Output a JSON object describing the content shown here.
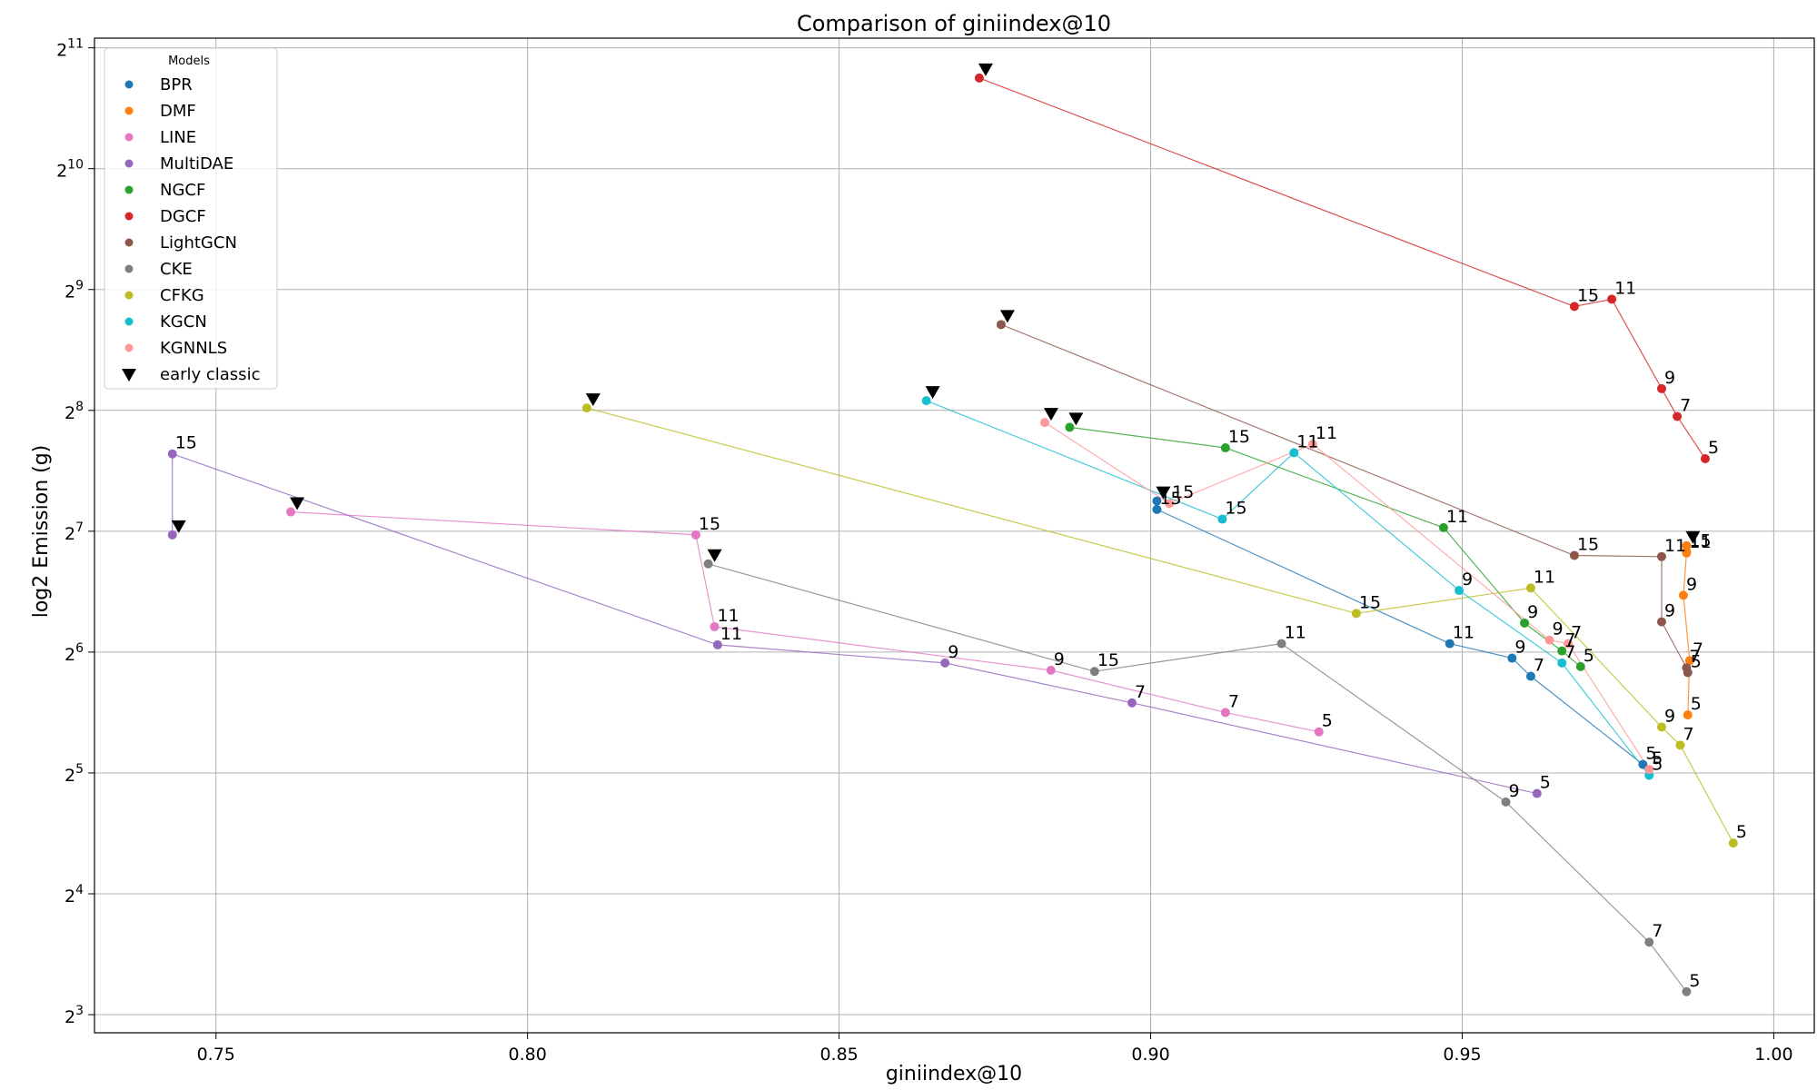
{
  "chart_data": {
    "type": "scatter",
    "title": "Comparison of giniindex@10",
    "xlabel": "giniindex@10",
    "ylabel": "log2 Emission (g)",
    "xlim": [
      0.7305,
      1.0065
    ],
    "ylim": [
      2.85,
      11.08
    ],
    "xticks": [
      0.75,
      0.8,
      0.85,
      0.9,
      0.95,
      1.0
    ],
    "xtick_labels": [
      "0.75",
      "0.80",
      "0.85",
      "0.90",
      "0.95",
      "1.00"
    ],
    "yticks": [
      3,
      4,
      5,
      6,
      7,
      8,
      9,
      10,
      11
    ],
    "ytick_base": "2",
    "grid": true,
    "legend": {
      "title": "Models",
      "position": "upper-left"
    },
    "early_classic_label": "early classic",
    "series": [
      {
        "name": "BPR",
        "color": "#1f77b4",
        "points": [
          {
            "x": 0.901,
            "y": 7.18,
            "label": "15"
          },
          {
            "x": 0.948,
            "y": 6.07,
            "label": "11"
          },
          {
            "x": 0.958,
            "y": 5.95,
            "label": "9"
          },
          {
            "x": 0.961,
            "y": 5.8,
            "label": "7"
          },
          {
            "x": 0.979,
            "y": 5.07,
            "label": "5"
          }
        ],
        "early": {
          "x": 0.901,
          "y": 7.25
        }
      },
      {
        "name": "DMF",
        "color": "#ff7f0e",
        "points": [
          {
            "x": 0.986,
            "y": 6.83,
            "label": "15"
          },
          {
            "x": 0.986,
            "y": 6.82,
            "label": "11"
          },
          {
            "x": 0.9855,
            "y": 6.47,
            "label": "9"
          },
          {
            "x": 0.9865,
            "y": 5.93,
            "label": "7"
          },
          {
            "x": 0.9862,
            "y": 5.48,
            "label": "5"
          }
        ],
        "early": {
          "x": 0.986,
          "y": 6.88
        }
      },
      {
        "name": "LINE",
        "color": "#e377c2",
        "points": [
          {
            "x": 0.827,
            "y": 6.97,
            "label": "15"
          },
          {
            "x": 0.83,
            "y": 6.21,
            "label": "11"
          },
          {
            "x": 0.884,
            "y": 5.85,
            "label": "9"
          },
          {
            "x": 0.912,
            "y": 5.5,
            "label": "7"
          },
          {
            "x": 0.927,
            "y": 5.34,
            "label": "5"
          }
        ],
        "early": {
          "x": 0.762,
          "y": 7.16
        }
      },
      {
        "name": "MultiDAE",
        "color": "#9467bd",
        "points": [
          {
            "x": 0.743,
            "y": 7.64,
            "label": "15"
          },
          {
            "x": 0.8305,
            "y": 6.06,
            "label": "11"
          },
          {
            "x": 0.867,
            "y": 5.91,
            "label": "9"
          },
          {
            "x": 0.897,
            "y": 5.58,
            "label": "7"
          },
          {
            "x": 0.962,
            "y": 4.83,
            "label": "5"
          }
        ],
        "early": {
          "x": 0.743,
          "y": 6.97
        }
      },
      {
        "name": "NGCF",
        "color": "#2ca02c",
        "points": [
          {
            "x": 0.912,
            "y": 7.69,
            "label": "15"
          },
          {
            "x": 0.947,
            "y": 7.03,
            "label": "11"
          },
          {
            "x": 0.96,
            "y": 6.24,
            "label": "9"
          },
          {
            "x": 0.966,
            "y": 6.01,
            "label": "7"
          },
          {
            "x": 0.969,
            "y": 5.88,
            "label": "5"
          }
        ],
        "early": {
          "x": 0.887,
          "y": 7.86
        }
      },
      {
        "name": "DGCF",
        "color": "#d62728",
        "points": [
          {
            "x": 0.968,
            "y": 8.86,
            "label": "15"
          },
          {
            "x": 0.974,
            "y": 8.92,
            "label": "11"
          },
          {
            "x": 0.982,
            "y": 8.18,
            "label": "9"
          },
          {
            "x": 0.9845,
            "y": 7.95,
            "label": "7"
          },
          {
            "x": 0.989,
            "y": 7.6,
            "label": "5"
          }
        ],
        "early": {
          "x": 0.8725,
          "y": 10.75
        }
      },
      {
        "name": "LightGCN",
        "color": "#8c564b",
        "points": [
          {
            "x": 0.968,
            "y": 6.8,
            "label": "15"
          },
          {
            "x": 0.982,
            "y": 6.79,
            "label": "11"
          },
          {
            "x": 0.982,
            "y": 6.25,
            "label": "9"
          },
          {
            "x": 0.986,
            "y": 5.87,
            "label": "7"
          },
          {
            "x": 0.9862,
            "y": 5.83,
            "label": "5"
          }
        ],
        "early": {
          "x": 0.876,
          "y": 8.71
        }
      },
      {
        "name": "CKE",
        "color": "#7f7f7f",
        "points": [
          {
            "x": 0.891,
            "y": 5.84,
            "label": "15"
          },
          {
            "x": 0.921,
            "y": 6.07,
            "label": "11"
          },
          {
            "x": 0.957,
            "y": 4.76,
            "label": "9"
          },
          {
            "x": 0.98,
            "y": 3.6,
            "label": "7"
          },
          {
            "x": 0.986,
            "y": 3.19,
            "label": "5"
          }
        ],
        "early": {
          "x": 0.829,
          "y": 6.73
        }
      },
      {
        "name": "CFKG",
        "color": "#bcbd22",
        "points": [
          {
            "x": 0.933,
            "y": 6.32,
            "label": "15"
          },
          {
            "x": 0.961,
            "y": 6.53,
            "label": "11"
          },
          {
            "x": 0.982,
            "y": 5.38,
            "label": "9"
          },
          {
            "x": 0.985,
            "y": 5.23,
            "label": "7"
          },
          {
            "x": 0.9935,
            "y": 4.42,
            "label": "5"
          }
        ],
        "early": {
          "x": 0.8095,
          "y": 8.02
        }
      },
      {
        "name": "KGCN",
        "color": "#17becf",
        "points": [
          {
            "x": 0.9115,
            "y": 7.1,
            "label": "15"
          },
          {
            "x": 0.923,
            "y": 7.65,
            "label": "11"
          },
          {
            "x": 0.9495,
            "y": 6.51,
            "label": "9"
          },
          {
            "x": 0.966,
            "y": 5.91,
            "label": "7"
          },
          {
            "x": 0.98,
            "y": 4.98,
            "label": "5"
          }
        ],
        "early": {
          "x": 0.864,
          "y": 8.08
        }
      },
      {
        "name": "KGNNLS",
        "color": "#ff9896",
        "points": [
          {
            "x": 0.903,
            "y": 7.23,
            "label": "15"
          },
          {
            "x": 0.926,
            "y": 7.72,
            "label": "11"
          },
          {
            "x": 0.964,
            "y": 6.1,
            "label": "9"
          },
          {
            "x": 0.967,
            "y": 6.07,
            "label": "7"
          },
          {
            "x": 0.98,
            "y": 5.03,
            "label": "5"
          }
        ],
        "early": {
          "x": 0.883,
          "y": 7.9
        }
      }
    ]
  }
}
